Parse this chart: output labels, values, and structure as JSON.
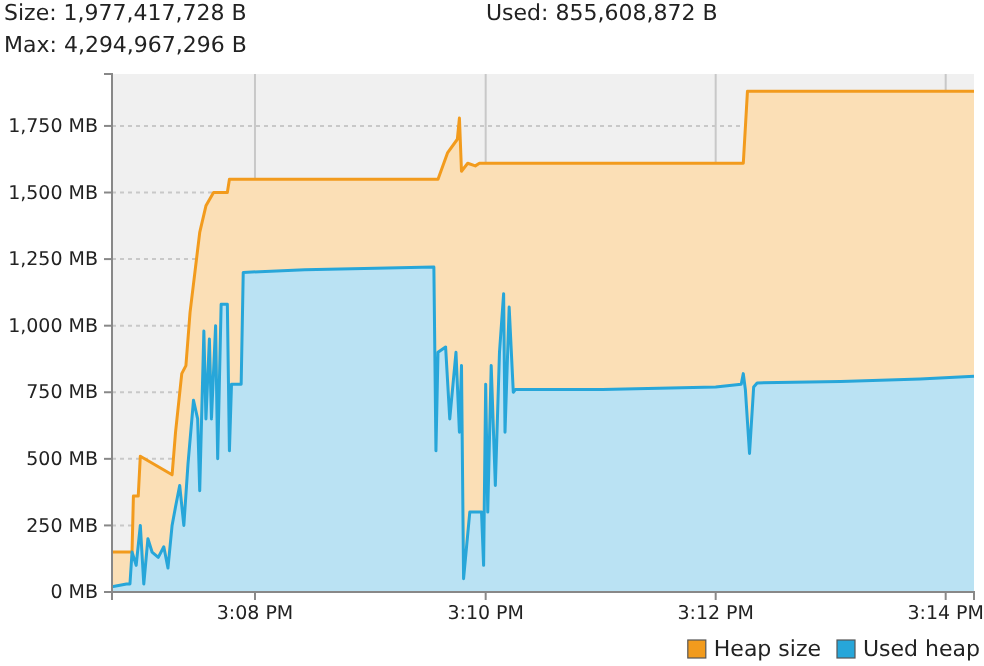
{
  "chart_data": {
    "type": "area",
    "annotations": [
      "Size: 1,977,417,728 B",
      "Used: 855,608,872 B",
      "Max: 4,294,967,296 B"
    ],
    "xlim": [
      15.1126,
      15.2374
    ],
    "ylim": [
      0,
      1945
    ],
    "xticks": [
      {
        "value": 15.1333,
        "label": "3:08 PM"
      },
      {
        "value": 15.1667,
        "label": "3:10 PM"
      },
      {
        "value": 15.2,
        "label": "3:12 PM"
      },
      {
        "value": 15.2333,
        "label": "3:14 PM"
      }
    ],
    "yticks": [
      {
        "value": 0,
        "label": "0 MB"
      },
      {
        "value": 250,
        "label": "250 MB"
      },
      {
        "value": 500,
        "label": "500 MB"
      },
      {
        "value": 750,
        "label": "750 MB"
      },
      {
        "value": 1000,
        "label": "1,000 MB"
      },
      {
        "value": 1250,
        "label": "1,250 MB"
      },
      {
        "value": 1500,
        "label": "1,500 MB"
      },
      {
        "value": 1750,
        "label": "1,750 MB"
      }
    ],
    "grid": true,
    "legend": "bottom right",
    "series": [
      {
        "name": "Heap size",
        "color": "#f29b1d",
        "x": [
          15.1126,
          15.1155,
          15.1157,
          15.1164,
          15.1167,
          15.1213,
          15.1218,
          15.1227,
          15.1233,
          15.1239,
          15.1253,
          15.1262,
          15.1273,
          15.1293,
          15.1296,
          15.1598,
          15.1612,
          15.1626,
          15.1629,
          15.1632,
          15.1641,
          15.1652,
          15.1658,
          15.204,
          15.2046,
          15.2374
        ],
        "values": [
          150,
          150,
          360,
          360,
          510,
          440,
          600,
          820,
          850,
          1050,
          1350,
          1450,
          1500,
          1500,
          1550,
          1550,
          1650,
          1700,
          1780,
          1580,
          1610,
          1600,
          1610,
          1610,
          1880,
          1880
        ]
      },
      {
        "name": "Used heap",
        "color": "#27a6d9",
        "x": [
          15.1126,
          15.1147,
          15.1152,
          15.1155,
          15.1161,
          15.1167,
          15.1172,
          15.1178,
          15.1184,
          15.1193,
          15.1201,
          15.1207,
          15.1213,
          15.1218,
          15.1224,
          15.123,
          15.1236,
          15.1244,
          15.125,
          15.1253,
          15.1259,
          15.1262,
          15.1267,
          15.127,
          15.1276,
          15.1279,
          15.1284,
          15.1293,
          15.1296,
          15.1299,
          15.1313,
          15.1316,
          15.1405,
          15.1491,
          15.1592,
          15.1595,
          15.1598,
          15.1609,
          15.1615,
          15.1624,
          15.1629,
          15.1632,
          15.1635,
          15.1644,
          15.1661,
          15.1664,
          15.1667,
          15.167,
          15.1675,
          15.1681,
          15.1687,
          15.1693,
          15.1695,
          15.1701,
          15.1707,
          15.171,
          15.1836,
          15.2,
          15.2037,
          15.204,
          15.2043,
          15.2049,
          15.2055,
          15.206,
          15.2181,
          15.2296,
          15.2374
        ],
        "values": [
          20,
          30,
          30,
          150,
          100,
          250,
          30,
          200,
          150,
          130,
          170,
          90,
          250,
          320,
          400,
          250,
          480,
          720,
          650,
          380,
          980,
          650,
          950,
          650,
          1000,
          500,
          1080,
          1080,
          530,
          780,
          780,
          1200,
          1210,
          1215,
          1220,
          530,
          900,
          920,
          650,
          900,
          600,
          850,
          50,
          300,
          300,
          100,
          780,
          300,
          850,
          400,
          900,
          1120,
          600,
          1070,
          750,
          760,
          760,
          770,
          780,
          820,
          760,
          520,
          770,
          785,
          790,
          800,
          810
        ]
      }
    ]
  }
}
